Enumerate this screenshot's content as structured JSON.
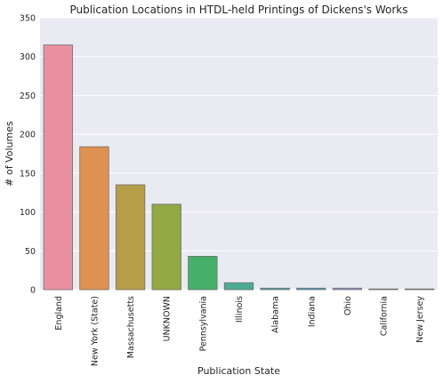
{
  "chart_data": {
    "type": "bar",
    "title": "Publication Locations in HTDL-held Printings of Dickens's Works",
    "xlabel": "Publication State",
    "ylabel": "# of Volumes",
    "ylim": [
      0,
      350
    ],
    "yticks": [
      0,
      50,
      100,
      150,
      200,
      250,
      300,
      350
    ],
    "grid": true,
    "categories": [
      "England",
      "New York (State)",
      "Massachusetts",
      "UNKNOWN",
      "Pennsylvania",
      "Illinois",
      "Alabama",
      "Indiana",
      "Ohio",
      "California",
      "New Jersey"
    ],
    "values": [
      315,
      184,
      135,
      110,
      43,
      9,
      2,
      2,
      2,
      1,
      1
    ],
    "colors": [
      "#e8909f",
      "#de9150",
      "#b69e48",
      "#91a843",
      "#46b06b",
      "#4aac95",
      "#4ba7b0",
      "#50a4c5",
      "#9a9dd6",
      "#d08cd3",
      "#e58ab1"
    ]
  }
}
